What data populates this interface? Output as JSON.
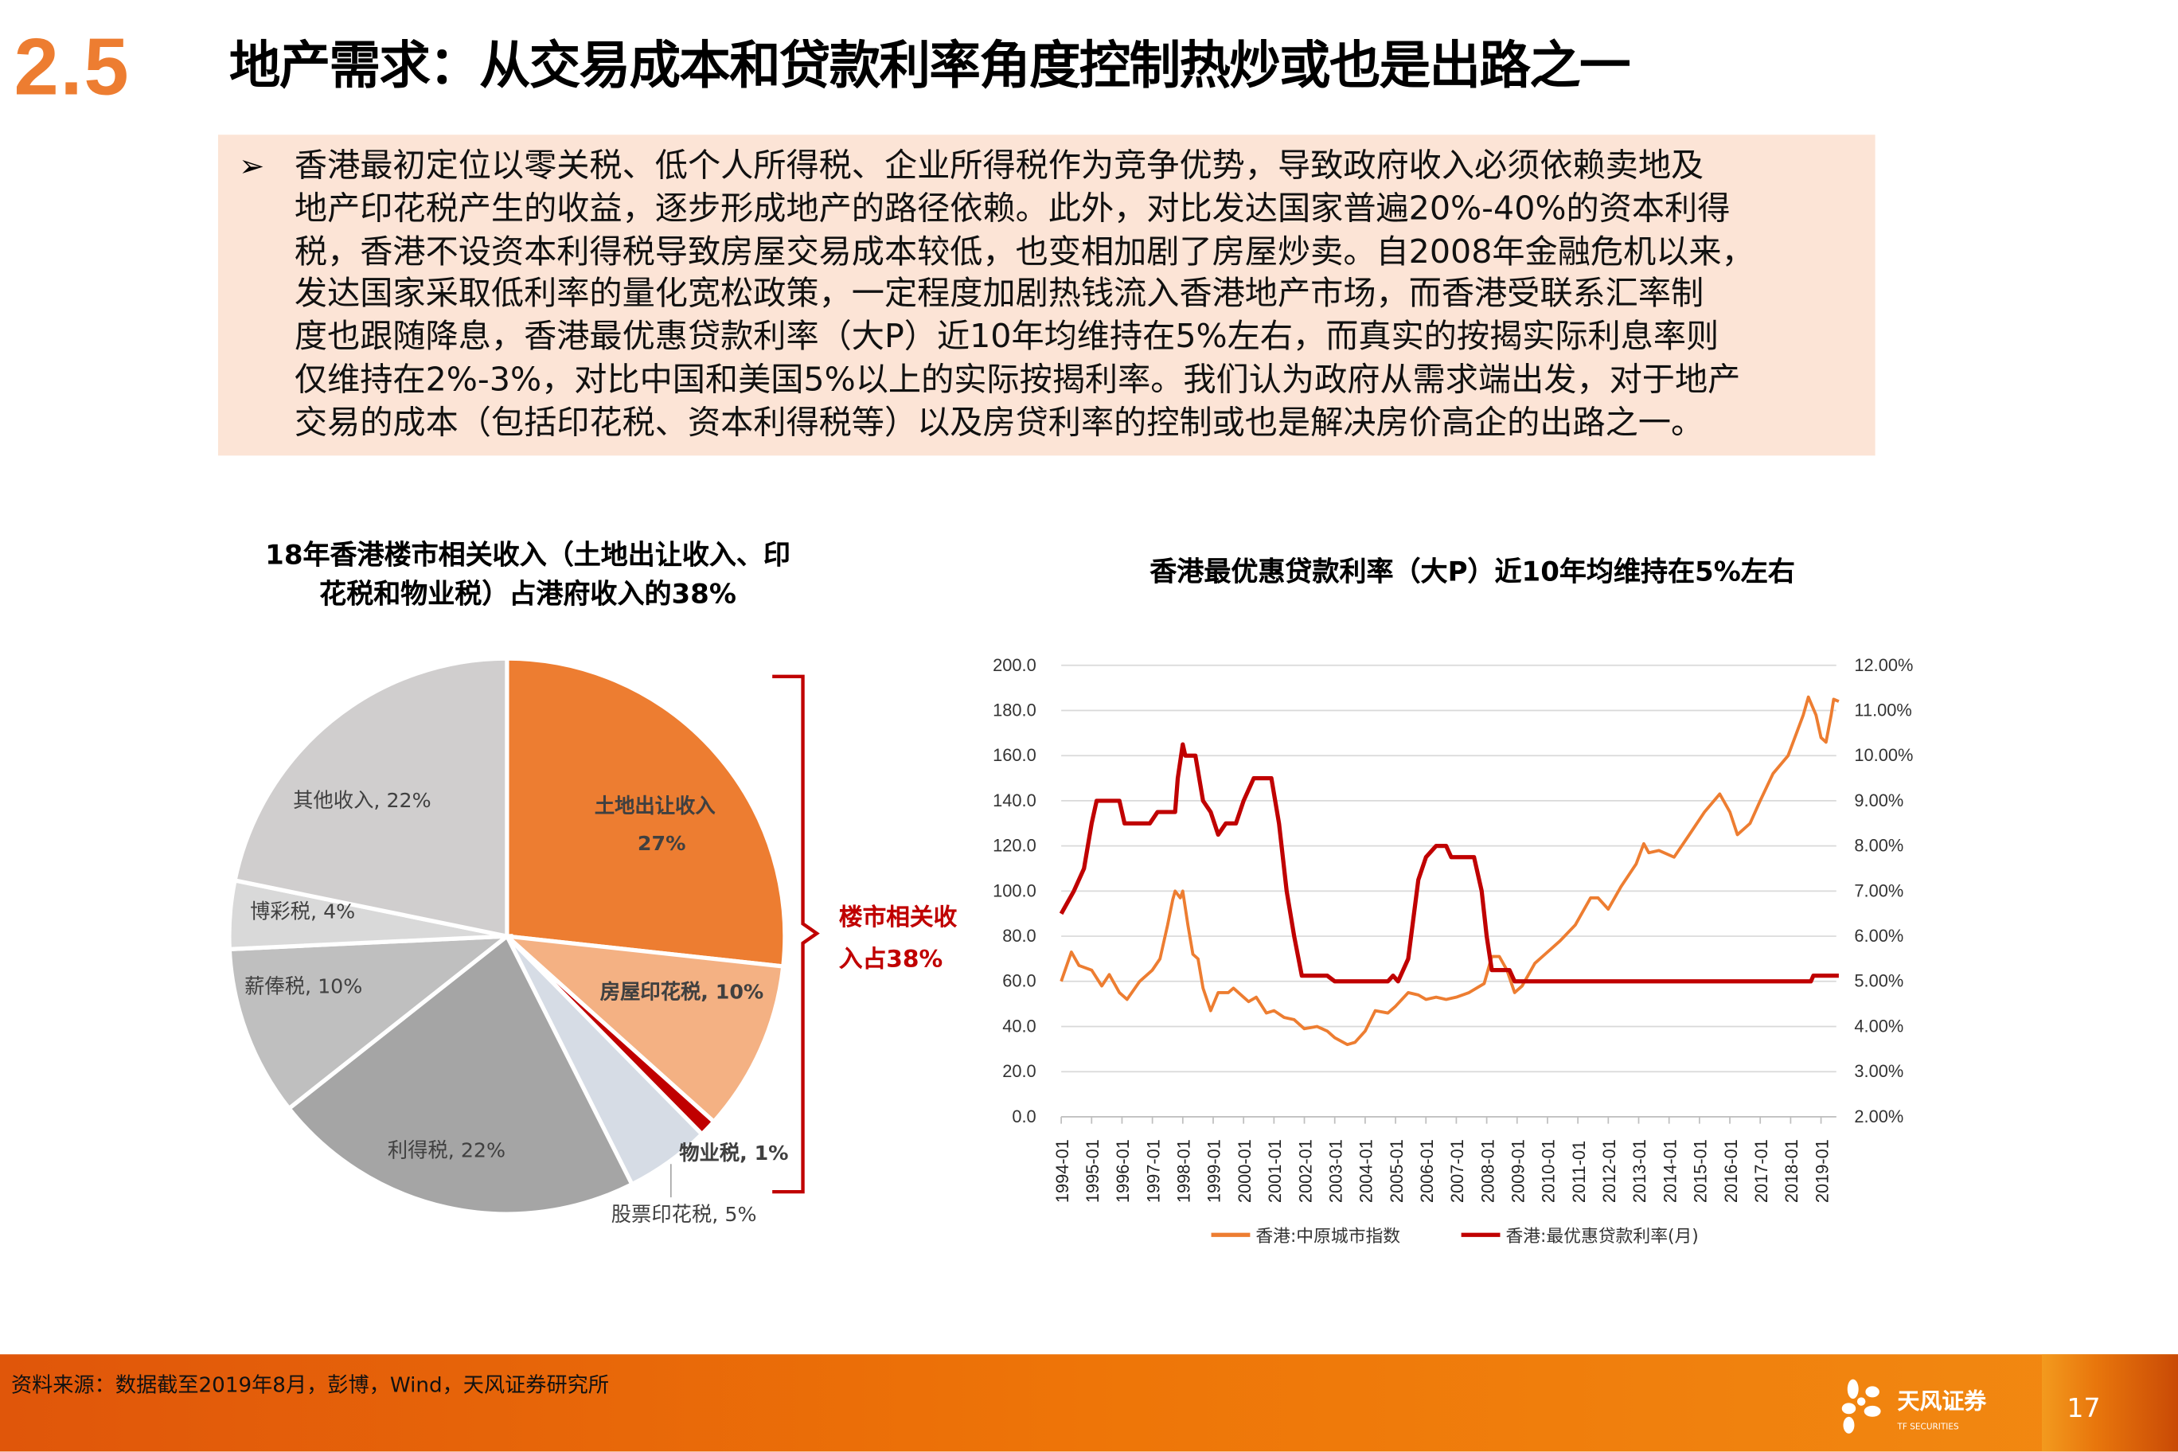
{
  "header": {
    "section_number": "2.5",
    "title": "地产需求：从交易成本和贷款利率角度控制热炒或也是出路之一"
  },
  "summary": {
    "bullet_icon": "arrow-bullet-icon",
    "lines": [
      "香港最初定位以零关税、低个人所得税、企业所得税作为竞争优势，导致政府收入必须依赖卖地及",
      "地产印花税产生的收益，逐步形成地产的路径依赖。此外，对比发达国家普遍20%-40%的资本利得",
      "税，香港不设资本利得税导致房屋交易成本较低，也变相加剧了房屋炒卖。自2008年金融危机以来，",
      "发达国家采取低利率的量化宽松政策，一定程度加剧热钱流入香港地产市场，而香港受联系汇率制",
      "度也跟随降息，香港最优惠贷款利率（大P）近10年均维持在5%左右，而真实的按揭实际利息率则",
      "仅维持在2%-3%，对比中国和美国5%以上的实际按揭利率。我们认为政府从需求端出发，对于地产",
      "交易的成本（包括印花税、资本利得税等）以及房贷利率的控制或也是解决房价高企的出路之一。"
    ]
  },
  "chart_data": [
    {
      "type": "pie",
      "title": "18年香港楼市相关收入（土地出让收入、印花税和物业税）占港府收入的38%",
      "title_lines": [
        "18年香港楼市相关收入（土地出让收入、印",
        "花税和物业税）占港府收入的38%"
      ],
      "slices": [
        {
          "label": "土地出让收入, 27%",
          "name": "土地出让收入",
          "value": 27,
          "color": "#ED7D31"
        },
        {
          "label": "房屋印花税, 10%",
          "name": "房屋印花税",
          "value": 10,
          "color": "#F4B183"
        },
        {
          "label": "物业税, 1%",
          "name": "物业税",
          "value": 1,
          "color": "#C00000"
        },
        {
          "label": "股票印花税, 5%",
          "name": "股票印花税",
          "value": 5,
          "color": "#D6DCE5"
        },
        {
          "label": "利得税, 22%",
          "name": "利得税",
          "value": 22,
          "color": "#A5A5A5"
        },
        {
          "label": "薪俸税, 10%",
          "name": "薪俸税",
          "value": 10,
          "color": "#BFBFBF"
        },
        {
          "label": "博彩税, 4%",
          "name": "博彩税",
          "value": 4,
          "color": "#D9D9D9"
        },
        {
          "label": "其他收入, 22%",
          "name": "其他收入",
          "value": 22,
          "color": "#D0CECE"
        }
      ],
      "annotation": {
        "lines": [
          "楼市相关收",
          "入占38%"
        ],
        "color": "#C00000"
      }
    },
    {
      "type": "line",
      "title": "香港最优惠贷款利率（大P）近10年均维持在5%左右",
      "y_left": {
        "min": 0,
        "max": 200,
        "ticks": [
          "200.0",
          "180.0",
          "160.0",
          "140.0",
          "120.0",
          "100.0",
          "80.0",
          "60.0",
          "40.0",
          "20.0",
          "0.0"
        ]
      },
      "y_right": {
        "min": 2,
        "max": 12,
        "ticks": [
          "12.00%",
          "11.00%",
          "10.00%",
          "9.00%",
          "8.00%",
          "7.00%",
          "6.00%",
          "5.00%",
          "4.00%",
          "3.00%",
          "2.00%"
        ]
      },
      "x_ticks": [
        "1994-01",
        "1995-01",
        "1996-01",
        "1997-01",
        "1998-01",
        "1999-01",
        "2000-01",
        "2001-01",
        "2002-01",
        "2003-01",
        "2004-01",
        "2005-01",
        "2006-01",
        "2007-01",
        "2008-01",
        "2009-01",
        "2010-01",
        "2011-01",
        "2012-01",
        "2013-01",
        "2014-01",
        "2015-01",
        "2016-01",
        "2017-01",
        "2018-01",
        "2019-01"
      ],
      "grid": true,
      "legend_position": "bottom",
      "series": [
        {
          "name": "香港:中原城市指数",
          "axis": "left",
          "color": "#ED7D31",
          "points": [
            [
              "1994-01",
              60
            ],
            [
              "1994-05",
              73
            ],
            [
              "1994-08",
              67
            ],
            [
              "1995-01",
              65
            ],
            [
              "1995-05",
              58
            ],
            [
              "1995-08",
              63
            ],
            [
              "1995-12",
              55
            ],
            [
              "1996-03",
              52
            ],
            [
              "1996-08",
              60
            ],
            [
              "1997-01",
              65
            ],
            [
              "1997-04",
              70
            ],
            [
              "1997-07",
              85
            ],
            [
              "1997-09",
              96
            ],
            [
              "1997-10",
              100
            ],
            [
              "1997-12",
              97
            ],
            [
              "1998-01",
              100
            ],
            [
              "1998-03",
              85
            ],
            [
              "1998-05",
              72
            ],
            [
              "1998-07",
              70
            ],
            [
              "1998-09",
              57
            ],
            [
              "1998-12",
              47
            ],
            [
              "1999-03",
              55
            ],
            [
              "1999-07",
              55
            ],
            [
              "1999-09",
              57
            ],
            [
              "2000-01",
              53
            ],
            [
              "2000-03",
              51
            ],
            [
              "2000-06",
              53
            ],
            [
              "2000-10",
              46
            ],
            [
              "2001-01",
              47
            ],
            [
              "2001-05",
              44
            ],
            [
              "2001-09",
              43
            ],
            [
              "2002-01",
              39
            ],
            [
              "2002-06",
              40
            ],
            [
              "2002-10",
              38
            ],
            [
              "2003-01",
              35
            ],
            [
              "2003-06",
              32
            ],
            [
              "2003-09",
              33
            ],
            [
              "2004-01",
              38
            ],
            [
              "2004-05",
              47
            ],
            [
              "2004-10",
              46
            ],
            [
              "2005-01",
              49
            ],
            [
              "2005-06",
              55
            ],
            [
              "2005-10",
              54
            ],
            [
              "2006-01",
              52
            ],
            [
              "2006-05",
              53
            ],
            [
              "2006-09",
              52
            ],
            [
              "2007-01",
              53
            ],
            [
              "2007-06",
              55
            ],
            [
              "2007-12",
              59
            ],
            [
              "2008-03",
              71
            ],
            [
              "2008-06",
              71
            ],
            [
              "2008-09",
              65
            ],
            [
              "2008-12",
              55
            ],
            [
              "2009-03",
              58
            ],
            [
              "2009-08",
              68
            ],
            [
              "2009-12",
              72
            ],
            [
              "2010-06",
              78
            ],
            [
              "2010-12",
              85
            ],
            [
              "2011-06",
              97
            ],
            [
              "2011-09",
              97
            ],
            [
              "2012-01",
              92
            ],
            [
              "2012-06",
              102
            ],
            [
              "2012-12",
              112
            ],
            [
              "2013-03",
              121
            ],
            [
              "2013-05",
              117
            ],
            [
              "2013-09",
              118
            ],
            [
              "2014-03",
              115
            ],
            [
              "2014-09",
              125
            ],
            [
              "2015-03",
              135
            ],
            [
              "2015-09",
              143
            ],
            [
              "2016-01",
              135
            ],
            [
              "2016-04",
              125
            ],
            [
              "2016-09",
              130
            ],
            [
              "2017-01",
              140
            ],
            [
              "2017-06",
              152
            ],
            [
              "2017-12",
              160
            ],
            [
              "2018-06",
              178
            ],
            [
              "2018-08",
              186
            ],
            [
              "2018-11",
              178
            ],
            [
              "2019-01",
              168
            ],
            [
              "2019-03",
              166
            ],
            [
              "2019-05",
              178
            ],
            [
              "2019-06",
              185
            ],
            [
              "2019-08",
              184
            ]
          ]
        },
        {
          "name": "香港:最优惠贷款利率(月)",
          "axis": "right",
          "color": "#C00000",
          "points": [
            [
              "1994-01",
              6.5
            ],
            [
              "1994-06",
              7
            ],
            [
              "1994-10",
              7.5
            ],
            [
              "1995-01",
              8.5
            ],
            [
              "1995-03",
              9
            ],
            [
              "1995-12",
              9
            ],
            [
              "1996-02",
              8.5
            ],
            [
              "1996-12",
              8.5
            ],
            [
              "1997-03",
              8.75
            ],
            [
              "1997-10",
              8.75
            ],
            [
              "1997-11",
              9.5
            ],
            [
              "1998-01",
              10.25
            ],
            [
              "1998-02",
              10
            ],
            [
              "1998-06",
              10
            ],
            [
              "1998-09",
              9
            ],
            [
              "1998-12",
              8.75
            ],
            [
              "1999-03",
              8.25
            ],
            [
              "1999-06",
              8.5
            ],
            [
              "1999-10",
              8.5
            ],
            [
              "2000-01",
              9
            ],
            [
              "2000-05",
              9.5
            ],
            [
              "2000-12",
              9.5
            ],
            [
              "2001-03",
              8.5
            ],
            [
              "2001-06",
              7
            ],
            [
              "2001-09",
              6
            ],
            [
              "2001-12",
              5.125
            ],
            [
              "2002-10",
              5.125
            ],
            [
              "2003-01",
              5
            ],
            [
              "2004-10",
              5
            ],
            [
              "2004-12",
              5.125
            ],
            [
              "2005-02",
              5
            ],
            [
              "2005-06",
              5.5
            ],
            [
              "2005-10",
              7.25
            ],
            [
              "2006-01",
              7.75
            ],
            [
              "2006-05",
              8
            ],
            [
              "2006-09",
              8
            ],
            [
              "2006-11",
              7.75
            ],
            [
              "2007-08",
              7.75
            ],
            [
              "2007-11",
              7
            ],
            [
              "2008-01",
              6
            ],
            [
              "2008-03",
              5.25
            ],
            [
              "2008-10",
              5.25
            ],
            [
              "2008-12",
              5
            ],
            [
              "2018-09",
              5
            ],
            [
              "2018-10",
              5.125
            ],
            [
              "2019-08",
              5.125
            ]
          ]
        }
      ]
    }
  ],
  "footer": {
    "source": "资料来源：数据截至2019年8月，彭博，Wind，天风证券研究所",
    "logo_text": "天风证券",
    "logo_sub": "TF SECURITIES",
    "page_number": "17"
  }
}
